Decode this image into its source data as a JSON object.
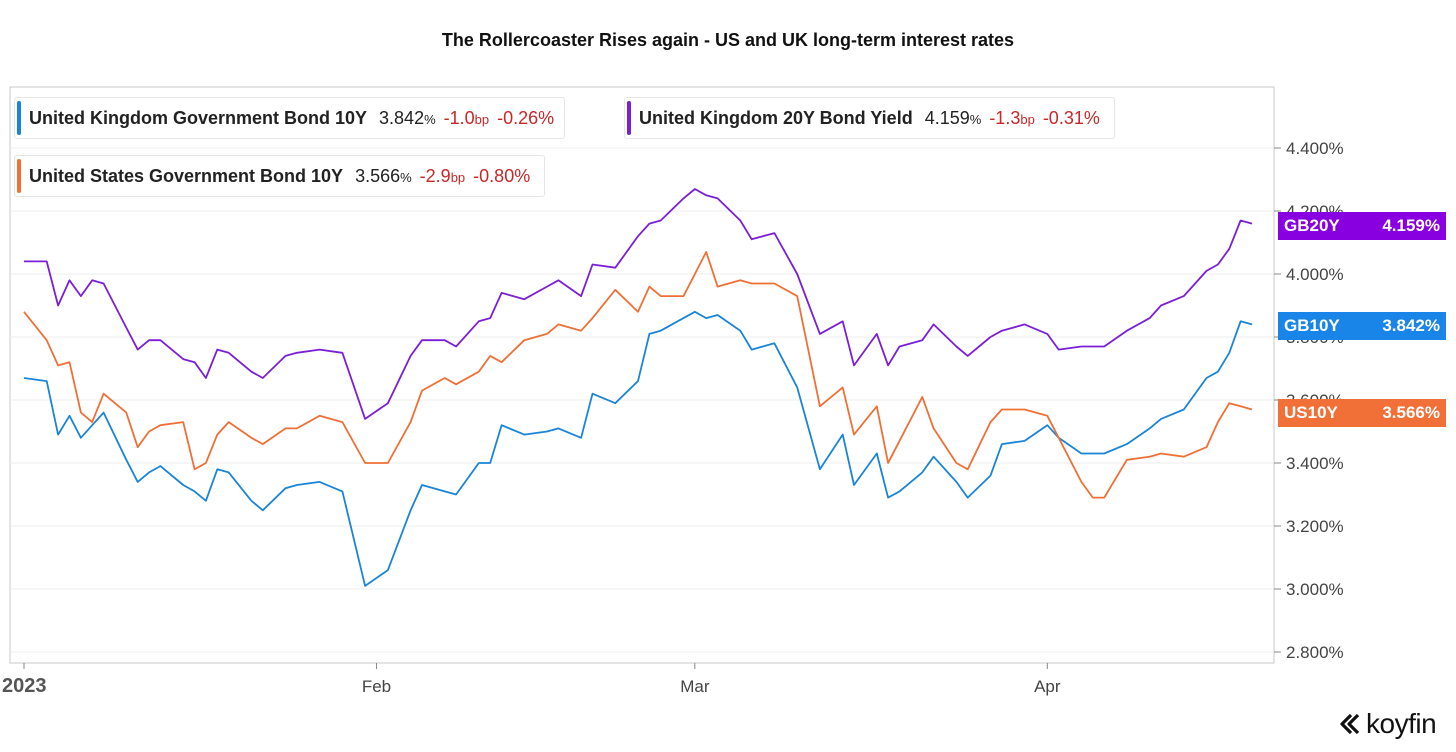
{
  "title": "The Rollercoaster Rises again - US and UK long-term interest rates",
  "brand": "koyfin",
  "legend": [
    {
      "name": "United Kingdom Government Bond 10Y",
      "value": "3.842",
      "unit": "%",
      "change": "-1.0",
      "change_unit": "bp",
      "pct": "-0.26%",
      "color": "#1a85d6"
    },
    {
      "name": "United Kingdom 20Y Bond Yield",
      "value": "4.159",
      "unit": "%",
      "change": "-1.3",
      "change_unit": "bp",
      "pct": "-0.31%",
      "color": "#7b1fd6"
    },
    {
      "name": "United States Government Bond 10Y",
      "value": "3.566",
      "unit": "%",
      "change": "-2.9",
      "change_unit": "bp",
      "pct": "-0.80%",
      "color": "#ef7036"
    }
  ],
  "tags": [
    {
      "name": "GB20Y",
      "value": "4.159%",
      "color": "#8800e0"
    },
    {
      "name": "GB10Y",
      "value": "3.842%",
      "color": "#1a85e8"
    },
    {
      "name": "US10Y",
      "value": "3.566%",
      "color": "#f07038"
    }
  ],
  "chart_data": {
    "type": "line",
    "title": "The Rollercoaster Rises again - US and UK long-term interest rates",
    "xlabel": "",
    "ylabel": "",
    "x_range": [
      "2023-01-01",
      "2023-04-19"
    ],
    "ylim": [
      2.75,
      4.55
    ],
    "y_ticks": [
      "4.400%",
      "4.200%",
      "4.000%",
      "3.800%",
      "3.600%",
      "3.400%",
      "3.200%",
      "3.000%",
      "2.800%"
    ],
    "x_ticks": [
      {
        "date": "2023-01-01",
        "label": "2023"
      },
      {
        "date": "2023-02-01",
        "label": "Feb"
      },
      {
        "date": "2023-03-01",
        "label": "Mar"
      },
      {
        "date": "2023-04-01",
        "label": "Apr"
      }
    ],
    "grid": true,
    "legend_position": "top-left",
    "series": [
      {
        "name": "United Kingdom 20Y Bond Yield",
        "color": "#7b1fd6",
        "points": [
          [
            "2023-01-01",
            4.04
          ],
          [
            "2023-01-03",
            4.04
          ],
          [
            "2023-01-04",
            3.9
          ],
          [
            "2023-01-05",
            3.98
          ],
          [
            "2023-01-06",
            3.93
          ],
          [
            "2023-01-07",
            3.98
          ],
          [
            "2023-01-08",
            3.97
          ],
          [
            "2023-01-10",
            3.83
          ],
          [
            "2023-01-11",
            3.76
          ],
          [
            "2023-01-12",
            3.79
          ],
          [
            "2023-01-13",
            3.79
          ],
          [
            "2023-01-15",
            3.73
          ],
          [
            "2023-01-16",
            3.72
          ],
          [
            "2023-01-17",
            3.67
          ],
          [
            "2023-01-18",
            3.76
          ],
          [
            "2023-01-19",
            3.75
          ],
          [
            "2023-01-21",
            3.69
          ],
          [
            "2023-01-22",
            3.67
          ],
          [
            "2023-01-24",
            3.74
          ],
          [
            "2023-01-25",
            3.75
          ],
          [
            "2023-01-27",
            3.76
          ],
          [
            "2023-01-29",
            3.75
          ],
          [
            "2023-01-31",
            3.54
          ],
          [
            "2023-02-02",
            3.59
          ],
          [
            "2023-02-04",
            3.74
          ],
          [
            "2023-02-05",
            3.79
          ],
          [
            "2023-02-07",
            3.79
          ],
          [
            "2023-02-08",
            3.77
          ],
          [
            "2023-02-10",
            3.85
          ],
          [
            "2023-02-11",
            3.86
          ],
          [
            "2023-02-12",
            3.94
          ],
          [
            "2023-02-14",
            3.92
          ],
          [
            "2023-02-16",
            3.96
          ],
          [
            "2023-02-17",
            3.98
          ],
          [
            "2023-02-19",
            3.93
          ],
          [
            "2023-02-20",
            4.03
          ],
          [
            "2023-02-22",
            4.02
          ],
          [
            "2023-02-24",
            4.12
          ],
          [
            "2023-02-25",
            4.16
          ],
          [
            "2023-02-26",
            4.17
          ],
          [
            "2023-02-28",
            4.24
          ],
          [
            "2023-03-01",
            4.27
          ],
          [
            "2023-03-02",
            4.25
          ],
          [
            "2023-03-03",
            4.24
          ],
          [
            "2023-03-05",
            4.17
          ],
          [
            "2023-03-06",
            4.11
          ],
          [
            "2023-03-08",
            4.13
          ],
          [
            "2023-03-10",
            4.0
          ],
          [
            "2023-03-12",
            3.81
          ],
          [
            "2023-03-14",
            3.85
          ],
          [
            "2023-03-15",
            3.71
          ],
          [
            "2023-03-17",
            3.81
          ],
          [
            "2023-03-18",
            3.71
          ],
          [
            "2023-03-19",
            3.77
          ],
          [
            "2023-03-21",
            3.79
          ],
          [
            "2023-03-22",
            3.84
          ],
          [
            "2023-03-24",
            3.77
          ],
          [
            "2023-03-25",
            3.74
          ],
          [
            "2023-03-27",
            3.8
          ],
          [
            "2023-03-28",
            3.82
          ],
          [
            "2023-03-30",
            3.84
          ],
          [
            "2023-04-01",
            3.81
          ],
          [
            "2023-04-02",
            3.76
          ],
          [
            "2023-04-04",
            3.77
          ],
          [
            "2023-04-05",
            3.77
          ],
          [
            "2023-04-06",
            3.77
          ],
          [
            "2023-04-08",
            3.82
          ],
          [
            "2023-04-10",
            3.86
          ],
          [
            "2023-04-11",
            3.9
          ],
          [
            "2023-04-13",
            3.93
          ],
          [
            "2023-04-15",
            4.01
          ],
          [
            "2023-04-16",
            4.03
          ],
          [
            "2023-04-17",
            4.08
          ],
          [
            "2023-04-18",
            4.17
          ],
          [
            "2023-04-19",
            4.16
          ]
        ]
      },
      {
        "name": "United Kingdom Government Bond 10Y",
        "color": "#1a85d6",
        "points": [
          [
            "2023-01-01",
            3.67
          ],
          [
            "2023-01-03",
            3.66
          ],
          [
            "2023-01-04",
            3.49
          ],
          [
            "2023-01-05",
            3.55
          ],
          [
            "2023-01-06",
            3.48
          ],
          [
            "2023-01-07",
            3.52
          ],
          [
            "2023-01-08",
            3.56
          ],
          [
            "2023-01-10",
            3.41
          ],
          [
            "2023-01-11",
            3.34
          ],
          [
            "2023-01-12",
            3.37
          ],
          [
            "2023-01-13",
            3.39
          ],
          [
            "2023-01-15",
            3.33
          ],
          [
            "2023-01-16",
            3.31
          ],
          [
            "2023-01-17",
            3.28
          ],
          [
            "2023-01-18",
            3.38
          ],
          [
            "2023-01-19",
            3.37
          ],
          [
            "2023-01-21",
            3.28
          ],
          [
            "2023-01-22",
            3.25
          ],
          [
            "2023-01-24",
            3.32
          ],
          [
            "2023-01-25",
            3.33
          ],
          [
            "2023-01-27",
            3.34
          ],
          [
            "2023-01-29",
            3.31
          ],
          [
            "2023-01-31",
            3.01
          ],
          [
            "2023-02-02",
            3.06
          ],
          [
            "2023-02-04",
            3.25
          ],
          [
            "2023-02-05",
            3.33
          ],
          [
            "2023-02-07",
            3.31
          ],
          [
            "2023-02-08",
            3.3
          ],
          [
            "2023-02-10",
            3.4
          ],
          [
            "2023-02-11",
            3.4
          ],
          [
            "2023-02-12",
            3.52
          ],
          [
            "2023-02-14",
            3.49
          ],
          [
            "2023-02-16",
            3.5
          ],
          [
            "2023-02-17",
            3.51
          ],
          [
            "2023-02-19",
            3.48
          ],
          [
            "2023-02-20",
            3.62
          ],
          [
            "2023-02-22",
            3.59
          ],
          [
            "2023-02-24",
            3.66
          ],
          [
            "2023-02-25",
            3.81
          ],
          [
            "2023-02-26",
            3.82
          ],
          [
            "2023-02-28",
            3.86
          ],
          [
            "2023-03-01",
            3.88
          ],
          [
            "2023-03-02",
            3.86
          ],
          [
            "2023-03-03",
            3.87
          ],
          [
            "2023-03-05",
            3.82
          ],
          [
            "2023-03-06",
            3.76
          ],
          [
            "2023-03-08",
            3.78
          ],
          [
            "2023-03-10",
            3.64
          ],
          [
            "2023-03-12",
            3.38
          ],
          [
            "2023-03-14",
            3.49
          ],
          [
            "2023-03-15",
            3.33
          ],
          [
            "2023-03-17",
            3.43
          ],
          [
            "2023-03-18",
            3.29
          ],
          [
            "2023-03-19",
            3.31
          ],
          [
            "2023-03-21",
            3.37
          ],
          [
            "2023-03-22",
            3.42
          ],
          [
            "2023-03-24",
            3.34
          ],
          [
            "2023-03-25",
            3.29
          ],
          [
            "2023-03-27",
            3.36
          ],
          [
            "2023-03-28",
            3.46
          ],
          [
            "2023-03-30",
            3.47
          ],
          [
            "2023-04-01",
            3.52
          ],
          [
            "2023-04-02",
            3.48
          ],
          [
            "2023-04-04",
            3.43
          ],
          [
            "2023-04-05",
            3.43
          ],
          [
            "2023-04-06",
            3.43
          ],
          [
            "2023-04-08",
            3.46
          ],
          [
            "2023-04-10",
            3.51
          ],
          [
            "2023-04-11",
            3.54
          ],
          [
            "2023-04-13",
            3.57
          ],
          [
            "2023-04-15",
            3.67
          ],
          [
            "2023-04-16",
            3.69
          ],
          [
            "2023-04-17",
            3.75
          ],
          [
            "2023-04-18",
            3.85
          ],
          [
            "2023-04-19",
            3.84
          ]
        ]
      },
      {
        "name": "United States Government Bond 10Y",
        "color": "#ef7036",
        "points": [
          [
            "2023-01-01",
            3.88
          ],
          [
            "2023-01-03",
            3.79
          ],
          [
            "2023-01-04",
            3.71
          ],
          [
            "2023-01-05",
            3.72
          ],
          [
            "2023-01-06",
            3.56
          ],
          [
            "2023-01-07",
            3.53
          ],
          [
            "2023-01-08",
            3.62
          ],
          [
            "2023-01-10",
            3.56
          ],
          [
            "2023-01-11",
            3.45
          ],
          [
            "2023-01-12",
            3.5
          ],
          [
            "2023-01-13",
            3.52
          ],
          [
            "2023-01-15",
            3.53
          ],
          [
            "2023-01-16",
            3.38
          ],
          [
            "2023-01-17",
            3.4
          ],
          [
            "2023-01-18",
            3.49
          ],
          [
            "2023-01-19",
            3.53
          ],
          [
            "2023-01-21",
            3.48
          ],
          [
            "2023-01-22",
            3.46
          ],
          [
            "2023-01-24",
            3.51
          ],
          [
            "2023-01-25",
            3.51
          ],
          [
            "2023-01-27",
            3.55
          ],
          [
            "2023-01-29",
            3.53
          ],
          [
            "2023-01-31",
            3.4
          ],
          [
            "2023-02-02",
            3.4
          ],
          [
            "2023-02-04",
            3.53
          ],
          [
            "2023-02-05",
            3.63
          ],
          [
            "2023-02-07",
            3.67
          ],
          [
            "2023-02-08",
            3.65
          ],
          [
            "2023-02-10",
            3.69
          ],
          [
            "2023-02-11",
            3.74
          ],
          [
            "2023-02-12",
            3.72
          ],
          [
            "2023-02-14",
            3.79
          ],
          [
            "2023-02-16",
            3.81
          ],
          [
            "2023-02-17",
            3.84
          ],
          [
            "2023-02-19",
            3.82
          ],
          [
            "2023-02-20",
            3.86
          ],
          [
            "2023-02-22",
            3.95
          ],
          [
            "2023-02-24",
            3.88
          ],
          [
            "2023-02-25",
            3.96
          ],
          [
            "2023-02-26",
            3.93
          ],
          [
            "2023-02-28",
            3.93
          ],
          [
            "2023-03-01",
            4.0
          ],
          [
            "2023-03-02",
            4.07
          ],
          [
            "2023-03-03",
            3.96
          ],
          [
            "2023-03-05",
            3.98
          ],
          [
            "2023-03-06",
            3.97
          ],
          [
            "2023-03-08",
            3.97
          ],
          [
            "2023-03-10",
            3.93
          ],
          [
            "2023-03-12",
            3.58
          ],
          [
            "2023-03-14",
            3.64
          ],
          [
            "2023-03-15",
            3.49
          ],
          [
            "2023-03-17",
            3.58
          ],
          [
            "2023-03-18",
            3.4
          ],
          [
            "2023-03-19",
            3.47
          ],
          [
            "2023-03-21",
            3.61
          ],
          [
            "2023-03-22",
            3.51
          ],
          [
            "2023-03-24",
            3.4
          ],
          [
            "2023-03-25",
            3.38
          ],
          [
            "2023-03-27",
            3.53
          ],
          [
            "2023-03-28",
            3.57
          ],
          [
            "2023-03-30",
            3.57
          ],
          [
            "2023-04-01",
            3.55
          ],
          [
            "2023-04-02",
            3.48
          ],
          [
            "2023-04-04",
            3.34
          ],
          [
            "2023-04-05",
            3.29
          ],
          [
            "2023-04-06",
            3.29
          ],
          [
            "2023-04-08",
            3.41
          ],
          [
            "2023-04-10",
            3.42
          ],
          [
            "2023-04-11",
            3.43
          ],
          [
            "2023-04-13",
            3.42
          ],
          [
            "2023-04-15",
            3.45
          ],
          [
            "2023-04-16",
            3.53
          ],
          [
            "2023-04-17",
            3.59
          ],
          [
            "2023-04-18",
            3.58
          ],
          [
            "2023-04-19",
            3.57
          ]
        ]
      }
    ]
  }
}
